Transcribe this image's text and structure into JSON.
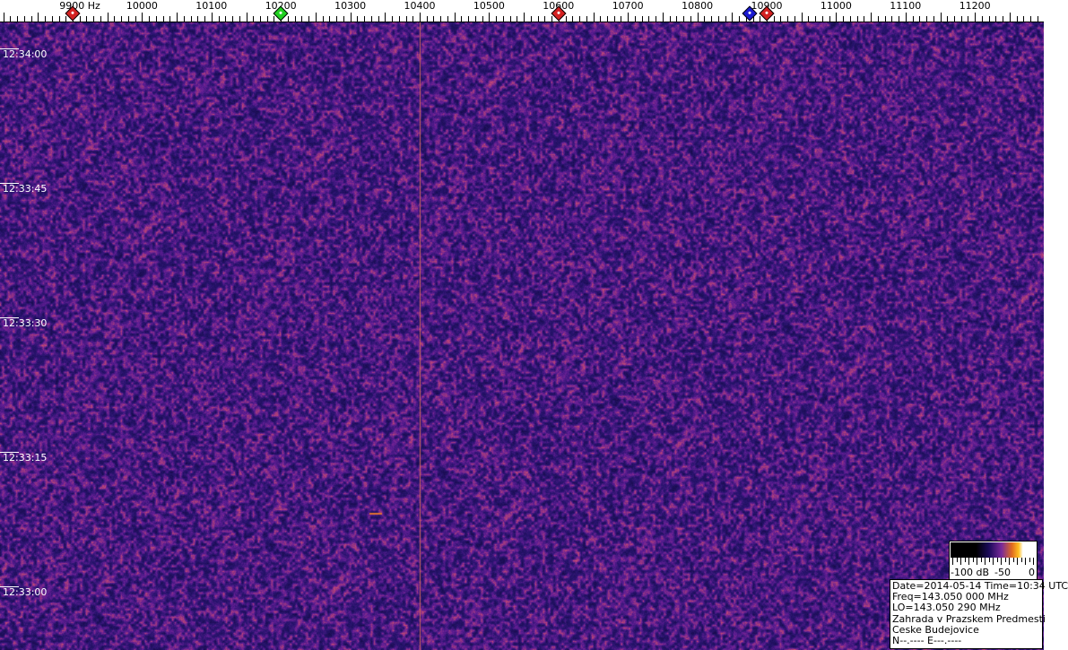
{
  "frequency_axis": {
    "unit": "Hz",
    "ticks": [
      {
        "freq": 9900,
        "label": "9900 Hz"
      },
      {
        "freq": 10000,
        "label": "10000"
      },
      {
        "freq": 10100,
        "label": "10100"
      },
      {
        "freq": 10200,
        "label": "10200"
      },
      {
        "freq": 10300,
        "label": "10300"
      },
      {
        "freq": 10400,
        "label": "10400"
      },
      {
        "freq": 10500,
        "label": "10500"
      },
      {
        "freq": 10600,
        "label": "10600"
      },
      {
        "freq": 10700,
        "label": "10700"
      },
      {
        "freq": 10800,
        "label": "10800"
      },
      {
        "freq": 10900,
        "label": "10900"
      },
      {
        "freq": 11000,
        "label": "11000"
      },
      {
        "freq": 11100,
        "label": "11100"
      },
      {
        "freq": 11200,
        "label": "11200"
      }
    ],
    "markers": [
      {
        "freq": 9900,
        "color": "#d42020"
      },
      {
        "freq": 10200,
        "color": "#20d020"
      },
      {
        "freq": 10600,
        "color": "#d42020"
      },
      {
        "freq": 10875,
        "color": "#1a1ad0"
      },
      {
        "freq": 10900,
        "color": "#d42020"
      }
    ]
  },
  "time_axis": {
    "labels": [
      "12:34:00",
      "12:33:45",
      "12:33:30",
      "12:33:15",
      "12:33:00"
    ]
  },
  "color_scale": {
    "labels": [
      "-100 dB",
      "-50",
      "0"
    ]
  },
  "info": {
    "line1": "Date=2014-05-14 Time=10:34 UTC",
    "line2": "Freq=143.050 000 MHz",
    "line3": "LO=143.050 290 MHz",
    "line4": "Zahrada v Prazskem Predmesti",
    "line5": "Ceske Budejovice",
    "line6": "N--.---- E---.----"
  },
  "colors": {
    "background": "#3a1c78",
    "carrier": "#d86a40"
  }
}
